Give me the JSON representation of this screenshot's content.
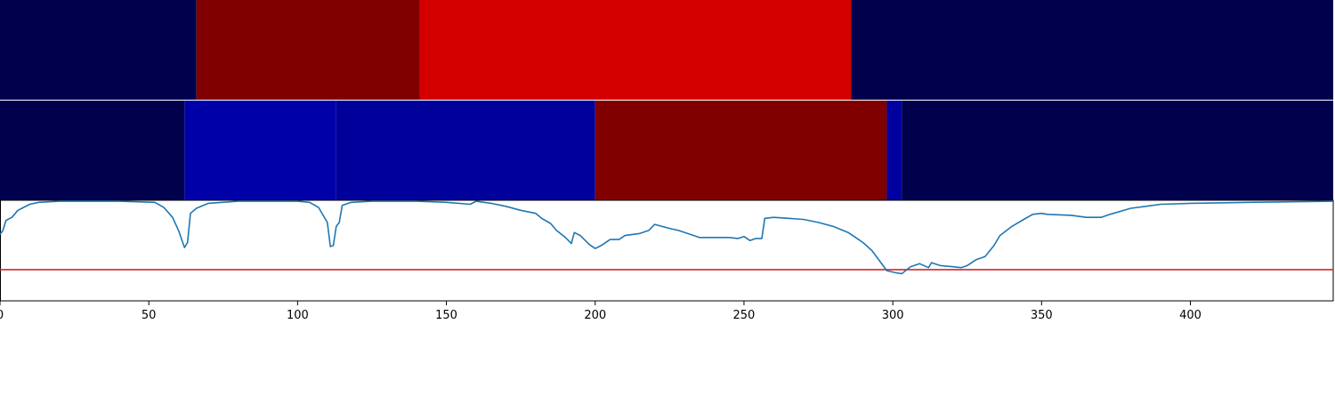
{
  "chart_data": [
    {
      "type": "heatmap",
      "segments": [
        {
          "start": 0,
          "end": 66,
          "color": "#00004d"
        },
        {
          "start": 66,
          "end": 141,
          "color": "#800000"
        },
        {
          "start": 141,
          "end": 286,
          "color": "#d40000"
        },
        {
          "start": 286,
          "end": 448,
          "color": "#00004d"
        }
      ]
    },
    {
      "type": "heatmap",
      "segments": [
        {
          "start": 0,
          "end": 62,
          "color": "#00004d"
        },
        {
          "start": 62,
          "end": 113,
          "color": "#0000a8"
        },
        {
          "start": 113,
          "end": 200,
          "color": "#00009a"
        },
        {
          "start": 200,
          "end": 298,
          "color": "#800000"
        },
        {
          "start": 298,
          "end": 303,
          "color": "#0000a0"
        },
        {
          "start": 303,
          "end": 448,
          "color": "#00004d"
        }
      ]
    },
    {
      "type": "line",
      "xlim": [
        0,
        448
      ],
      "ylim": [
        0,
        1
      ],
      "threshold": 0.31,
      "threshold_color": "#d62728",
      "line_color": "#1f77b4",
      "x_ticks": [
        0,
        50,
        100,
        150,
        200,
        250,
        300,
        350,
        400
      ],
      "x_tick_labels": [
        "0",
        "50",
        "100",
        "150",
        "200",
        "250",
        "300",
        "350",
        "400"
      ],
      "points": [
        [
          0,
          0.66
        ],
        [
          1,
          0.7
        ],
        [
          2,
          0.8
        ],
        [
          4,
          0.83
        ],
        [
          6,
          0.9
        ],
        [
          8,
          0.93
        ],
        [
          10,
          0.96
        ],
        [
          13,
          0.98
        ],
        [
          20,
          0.99
        ],
        [
          40,
          0.99
        ],
        [
          52,
          0.98
        ],
        [
          55,
          0.93
        ],
        [
          58,
          0.83
        ],
        [
          60,
          0.7
        ],
        [
          62,
          0.53
        ],
        [
          63,
          0.58
        ],
        [
          64,
          0.87
        ],
        [
          66,
          0.92
        ],
        [
          70,
          0.97
        ],
        [
          80,
          0.99
        ],
        [
          100,
          0.99
        ],
        [
          104,
          0.98
        ],
        [
          107,
          0.93
        ],
        [
          110,
          0.78
        ],
        [
          111,
          0.54
        ],
        [
          112,
          0.55
        ],
        [
          113,
          0.74
        ],
        [
          114,
          0.78
        ],
        [
          115,
          0.95
        ],
        [
          118,
          0.98
        ],
        [
          125,
          0.99
        ],
        [
          140,
          0.99
        ],
        [
          150,
          0.98
        ],
        [
          158,
          0.96
        ],
        [
          160,
          0.99
        ],
        [
          165,
          0.97
        ],
        [
          170,
          0.94
        ],
        [
          175,
          0.9
        ],
        [
          180,
          0.87
        ],
        [
          182,
          0.82
        ],
        [
          185,
          0.77
        ],
        [
          187,
          0.7
        ],
        [
          190,
          0.63
        ],
        [
          192,
          0.57
        ],
        [
          193,
          0.68
        ],
        [
          195,
          0.65
        ],
        [
          198,
          0.56
        ],
        [
          200,
          0.52
        ],
        [
          202,
          0.55
        ],
        [
          205,
          0.61
        ],
        [
          208,
          0.61
        ],
        [
          210,
          0.65
        ],
        [
          215,
          0.67
        ],
        [
          218,
          0.7
        ],
        [
          220,
          0.76
        ],
        [
          225,
          0.72
        ],
        [
          228,
          0.7
        ],
        [
          232,
          0.66
        ],
        [
          235,
          0.63
        ],
        [
          240,
          0.63
        ],
        [
          245,
          0.63
        ],
        [
          248,
          0.62
        ],
        [
          250,
          0.64
        ],
        [
          252,
          0.6
        ],
        [
          254,
          0.62
        ],
        [
          256,
          0.62
        ],
        [
          257,
          0.82
        ],
        [
          260,
          0.83
        ],
        [
          265,
          0.82
        ],
        [
          270,
          0.81
        ],
        [
          275,
          0.78
        ],
        [
          280,
          0.74
        ],
        [
          285,
          0.68
        ],
        [
          288,
          0.62
        ],
        [
          290,
          0.58
        ],
        [
          293,
          0.5
        ],
        [
          296,
          0.38
        ],
        [
          298,
          0.3
        ],
        [
          301,
          0.28
        ],
        [
          303,
          0.27
        ],
        [
          306,
          0.34
        ],
        [
          309,
          0.37
        ],
        [
          312,
          0.33
        ],
        [
          313,
          0.38
        ],
        [
          316,
          0.35
        ],
        [
          320,
          0.34
        ],
        [
          323,
          0.33
        ],
        [
          325,
          0.35
        ],
        [
          328,
          0.41
        ],
        [
          331,
          0.44
        ],
        [
          334,
          0.55
        ],
        [
          336,
          0.65
        ],
        [
          340,
          0.74
        ],
        [
          344,
          0.81
        ],
        [
          347,
          0.86
        ],
        [
          350,
          0.87
        ],
        [
          352,
          0.86
        ],
        [
          360,
          0.85
        ],
        [
          365,
          0.83
        ],
        [
          370,
          0.83
        ],
        [
          373,
          0.86
        ],
        [
          380,
          0.92
        ],
        [
          385,
          0.94
        ],
        [
          390,
          0.96
        ],
        [
          400,
          0.97
        ],
        [
          420,
          0.98
        ],
        [
          448,
          0.99
        ]
      ]
    }
  ]
}
